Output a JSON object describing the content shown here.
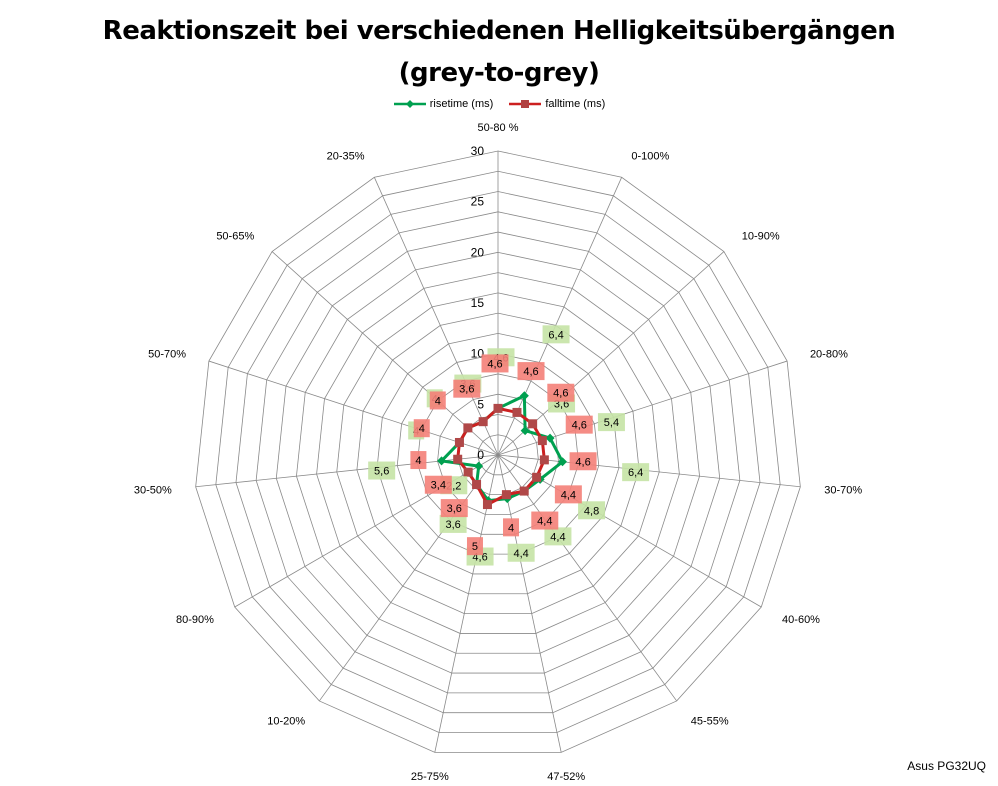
{
  "chart_data": {
    "type": "radar",
    "title_line1": "Reaktionszeit bei verschiedenen Helligkeitsübergängen",
    "title_line2": "(grey-to-grey)",
    "categories": [
      "50-80 %",
      "0-100%",
      "10-90%",
      "20-80%",
      "30-70%",
      "40-60%",
      "45-55%",
      "47-52%",
      "25-75%",
      "10-20%",
      "80-90%",
      "30-50%",
      "50-70%",
      "50-65%",
      "20-35%"
    ],
    "rlim": [
      0,
      30
    ],
    "ticks": [
      0,
      5,
      10,
      15,
      20,
      25,
      30
    ],
    "tick_labels": [
      "0",
      "5",
      "10",
      "15",
      "20",
      "25",
      "30"
    ],
    "grid": true,
    "legend_position": "top",
    "series": [
      {
        "name": "risetime (ms)",
        "color": "#00a050",
        "label_bg": "#c5e3a5",
        "marker": "diamond",
        "values": [
          4.6,
          6.4,
          3.6,
          5.4,
          6.4,
          4.8,
          4.4,
          4.4,
          4.6,
          3.6,
          2.2,
          5.6,
          4,
          4,
          3.6
        ],
        "labels": [
          "4,6",
          "6,4",
          "3,6",
          "5,4",
          "6,4",
          "4,8",
          "4,4",
          "4,4",
          "4,6",
          "3,6",
          "2,2",
          "5,6",
          "4",
          "4",
          "3,6"
        ]
      },
      {
        "name": "falltime (ms)",
        "color": "#cc2020",
        "label_bg": "#f48078",
        "marker": "square",
        "values": [
          4.6,
          4.6,
          4.6,
          4.6,
          4.6,
          4.4,
          4.4,
          4.0,
          5.0,
          3.6,
          3.4,
          4.0,
          4.0,
          4.0,
          3.6
        ],
        "labels": [
          "4,6",
          "4,6",
          "4,6",
          "4,6",
          "4,6",
          "4,4",
          "4,4",
          "4",
          "5",
          "3,6",
          "3,4",
          "4",
          "4",
          "4",
          "3,6"
        ]
      }
    ]
  },
  "credit": "Asus PG32UQ"
}
